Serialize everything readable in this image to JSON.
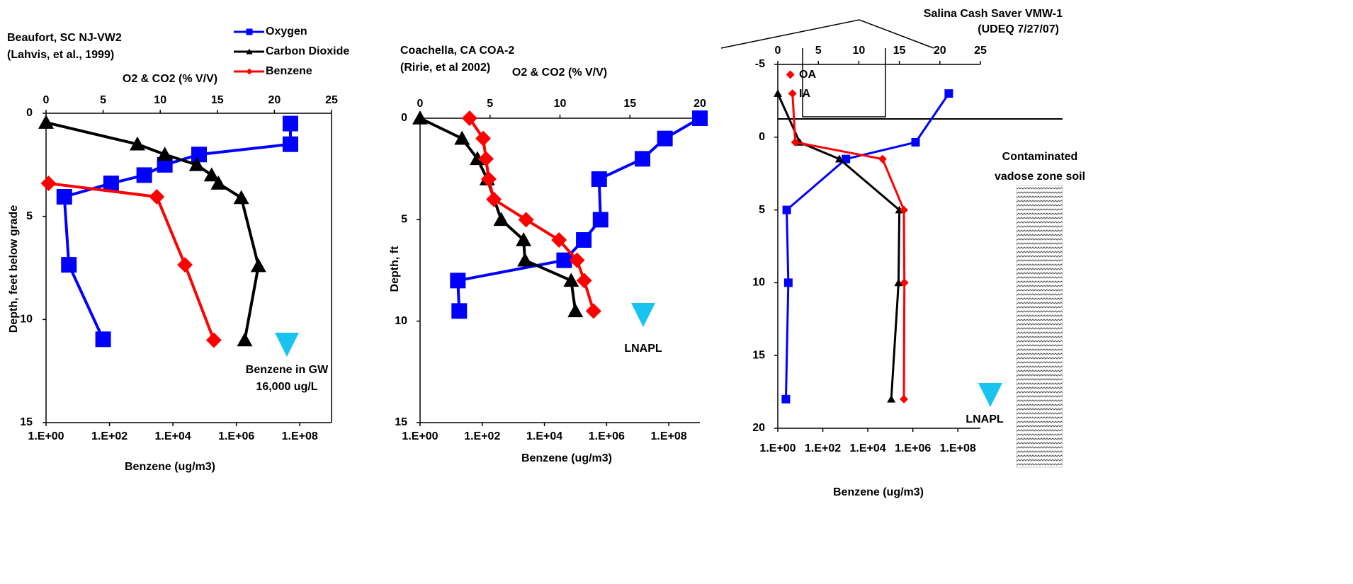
{
  "chart_data": [
    {
      "type": "line",
      "title": [
        "Beaufort, SC NJ-VW2",
        "(Lahvis, et al., 1999)"
      ],
      "x2label": "O2 & CO2 (% V/V)",
      "xlabel": "Benzene (ug/m3)",
      "ylabel": "Depth, feet below grade",
      "xscale": "log",
      "xlim": [
        1,
        1000000000
      ],
      "xticks": [
        {
          "value": 1,
          "label": "1.E+00"
        },
        {
          "value": 100,
          "label": "1.E+02"
        },
        {
          "value": 10000,
          "label": "1.E+04"
        },
        {
          "value": 1000000,
          "label": "1.E+06"
        },
        {
          "value": 100000000,
          "label": "1.E+08"
        }
      ],
      "x2lim": [
        0,
        25
      ],
      "x2ticks": [
        0,
        5,
        10,
        15,
        20,
        25
      ],
      "ylim": [
        0,
        15
      ],
      "yticks": [
        0,
        5,
        10,
        15
      ],
      "y_inverted": true,
      "legend": true,
      "marker_size": 22,
      "line_width": 4,
      "series": [
        {
          "name": "Oxygen",
          "color": "#0000ff",
          "marker": "square",
          "axis": "x2",
          "x": [
            21.4,
            21.4,
            13.4,
            10.4,
            8.6,
            5.7,
            1.6,
            2.0,
            5.0
          ],
          "y": [
            0.5,
            1.5,
            2.0,
            2.5,
            3.0,
            3.4,
            4.05,
            7.35,
            10.96
          ]
        },
        {
          "name": "Carbon Dioxide",
          "color": "#000000",
          "marker": "triangle",
          "axis": "x2",
          "x": [
            0,
            8.0,
            10.4,
            13.2,
            14.5,
            15.1,
            17.1,
            18.6,
            17.4
          ],
          "y": [
            0.45,
            1.5,
            2.0,
            2.5,
            3.0,
            3.4,
            4.1,
            7.4,
            11.0
          ]
        },
        {
          "name": "Benzene",
          "color": "#ff0000",
          "marker": "diamond",
          "x": [
            1.2,
            3100,
            24000,
            195000
          ],
          "y": [
            3.4,
            4.05,
            7.35,
            11.0
          ]
        }
      ],
      "annotations": [
        "Benzene in GW",
        "16,000 ug/L"
      ]
    },
    {
      "type": "line",
      "title": [
        "Coachella, CA COA-2",
        "(Ririe, et al 2002)"
      ],
      "x2label": "O2 & CO2 (% V/V)",
      "xlabel": "Benzene (ug/m3)",
      "ylabel": "Depth, ft",
      "xscale": "log",
      "xlim": [
        1,
        1000000000
      ],
      "xticks": [
        {
          "value": 1,
          "label": "1.E+00"
        },
        {
          "value": 100,
          "label": "1.E+02"
        },
        {
          "value": 10000,
          "label": "1.E+04"
        },
        {
          "value": 1000000,
          "label": "1.E+06"
        },
        {
          "value": 100000000,
          "label": "1.E+08"
        }
      ],
      "x2lim": [
        0,
        20
      ],
      "x2ticks": [
        0,
        5,
        10,
        15,
        20
      ],
      "ylim": [
        0,
        15
      ],
      "yticks": [
        0,
        5,
        10,
        15
      ],
      "y_inverted": true,
      "marker_size": 22,
      "line_width": 4,
      "series": [
        {
          "color": "#0000ff",
          "marker": "square",
          "axis": "x2",
          "x": [
            20,
            17.5,
            15.9,
            12.8,
            12.9,
            11.7,
            10.3,
            2.7,
            2.8
          ],
          "y": [
            0,
            1,
            2,
            3,
            5,
            6,
            7,
            8,
            9.5
          ]
        },
        {
          "color": "#000000",
          "marker": "triangle",
          "axis": "x2",
          "x": [
            0,
            3.0,
            4.1,
            4.8,
            5.8,
            7.4,
            7.5,
            10.8,
            11.1
          ],
          "y": [
            0,
            1,
            2,
            3,
            5,
            6,
            7,
            8,
            9.5
          ]
        },
        {
          "color": "#ff0000",
          "marker": "diamond",
          "x": [
            39,
            107,
            132,
            162,
            236,
            2570,
            29500,
            112000,
            190000,
            380000
          ],
          "y": [
            0,
            1,
            2,
            3,
            4,
            5,
            6,
            7,
            8,
            9.5
          ]
        }
      ],
      "annotations": [
        "LNAPL"
      ]
    },
    {
      "type": "line",
      "title": [
        "Salina  Cash Saver VMW-1",
        "(UDEQ 7/27/07)"
      ],
      "xlabel": "Benzene (ug/m3)",
      "xscale": "log",
      "xlim": [
        1,
        1000000000
      ],
      "xticks": [
        {
          "value": 1,
          "label": "1.E+00"
        },
        {
          "value": 100,
          "label": "1.E+02"
        },
        {
          "value": 10000,
          "label": "1.E+04"
        },
        {
          "value": 1000000,
          "label": "1.E+06"
        },
        {
          "value": 100000000,
          "label": "1.E+08"
        }
      ],
      "x2lim": [
        0,
        25
      ],
      "x2ticks": [
        0,
        5,
        10,
        15,
        20,
        25
      ],
      "ylim": [
        -5,
        20
      ],
      "yticks": [
        -5,
        0,
        5,
        10,
        15,
        20
      ],
      "y_inverted": true,
      "marker_size": 12,
      "line_width": 3,
      "series": [
        {
          "color": "#0000ff",
          "marker": "square",
          "axis": "x2",
          "x": [
            21.1,
            17.0,
            8.4,
            1.1,
            1.3,
            1.0
          ],
          "y": [
            -3.0,
            0.35,
            1.5,
            5.0,
            10.0,
            18.0
          ]
        },
        {
          "color": "#000000",
          "marker": "triangle",
          "axis": "x2",
          "x": [
            0,
            2.7,
            7.6,
            15.0,
            14.9,
            14.0
          ],
          "y": [
            -3.0,
            0.35,
            1.5,
            5.0,
            10.0,
            18.0
          ]
        },
        {
          "color": "#ff0000",
          "marker": "diamond",
          "x": [
            4.5,
            6,
            45000,
            400000,
            420000,
            400000
          ],
          "y": [
            -3.0,
            0.35,
            1.5,
            5.0,
            10.0,
            18.0
          ]
        },
        {
          "color": "#ff0000",
          "marker": "diamond",
          "x": [
            3.6
          ],
          "y": [
            -4.3
          ]
        }
      ],
      "annotations": [
        "OA",
        "IA",
        "LNAPL",
        "Contaminated",
        "vadose zone soil"
      ]
    }
  ]
}
